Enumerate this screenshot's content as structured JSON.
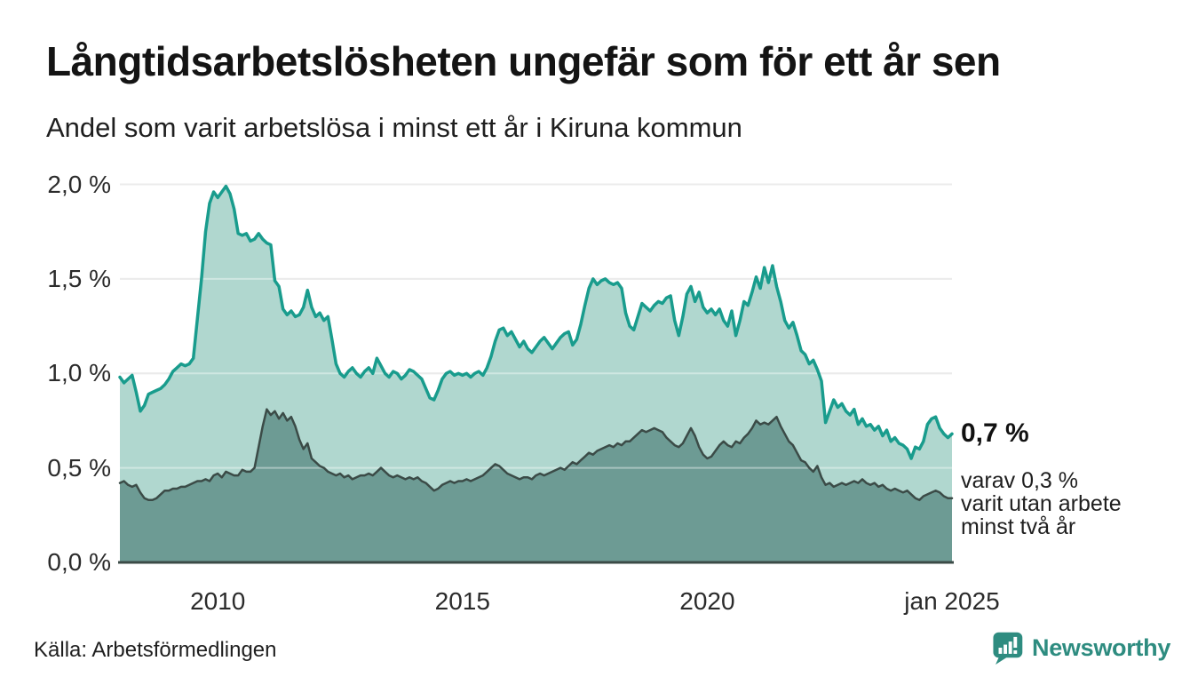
{
  "header": {
    "title": "Långtidsarbetslösheten ungefär som för ett år sen",
    "subtitle": "Andel som varit arbetslösa i minst ett år i Kiruna kommun"
  },
  "annotation": {
    "primary": "0,7 %",
    "secondary_lines": [
      "varav 0,3 %",
      "varit utan arbete",
      "minst två år"
    ]
  },
  "source": {
    "label": "Källa: Arbetsförmedlingen"
  },
  "branding": {
    "name": "Newsworthy",
    "color": "#2e8c80"
  },
  "colors": {
    "line_total": "#199c8d",
    "fill_total": "#b0d7cf",
    "line_two_years": "#3b4b47",
    "fill_two_years": "#6d9b94",
    "gridline": "#dedede",
    "axis": "#3b4b47",
    "text": "#1a1a1a"
  },
  "chart_data": {
    "type": "area",
    "title": "Långtidsarbetslösheten ungefär som för ett år sen",
    "subtitle": "Andel som varit arbetslösa i minst ett år i Kiruna kommun",
    "xlabel": "",
    "ylabel": "",
    "x_unit": "month",
    "x_start": 2008.0,
    "x_end": 2025.0,
    "ylim": [
      0,
      2.0
    ],
    "grid": true,
    "legend": "annotations at line end instead of legend box",
    "y_ticks": [
      0,
      0.5,
      1.0,
      1.5,
      2.0
    ],
    "y_tick_labels": [
      "0,0 %",
      "0,5 %",
      "1,0 %",
      "1,5 %",
      "2,0 %"
    ],
    "x_ticks": [
      2010,
      2015,
      2020,
      2025
    ],
    "x_tick_labels": [
      "2010",
      "2015",
      "2020",
      "jan 2025"
    ],
    "end_labels": {
      "total": "0,7 %",
      "two_years": "0,3 %"
    },
    "series": [
      {
        "name": "Andel som varit arbetslösa i minst ett år",
        "color": "#199c8d",
        "fill": "#b0d7cf",
        "line_width": 3.5,
        "values": [
          0.98,
          0.95,
          0.97,
          0.99,
          0.9,
          0.8,
          0.83,
          0.89,
          0.9,
          0.91,
          0.92,
          0.94,
          0.97,
          1.01,
          1.03,
          1.05,
          1.04,
          1.05,
          1.08,
          1.29,
          1.5,
          1.75,
          1.9,
          1.96,
          1.93,
          1.96,
          1.99,
          1.95,
          1.87,
          1.74,
          1.73,
          1.74,
          1.7,
          1.71,
          1.74,
          1.71,
          1.69,
          1.68,
          1.49,
          1.46,
          1.34,
          1.31,
          1.33,
          1.3,
          1.31,
          1.35,
          1.44,
          1.35,
          1.3,
          1.32,
          1.28,
          1.3,
          1.18,
          1.05,
          1.0,
          0.98,
          1.01,
          1.03,
          1.0,
          0.98,
          1.01,
          1.03,
          1.0,
          1.08,
          1.04,
          1.0,
          0.98,
          1.01,
          1.0,
          0.97,
          0.99,
          1.02,
          1.01,
          0.99,
          0.97,
          0.92,
          0.87,
          0.86,
          0.91,
          0.97,
          1.0,
          1.01,
          0.99,
          1.0,
          0.99,
          1.0,
          0.98,
          1.0,
          1.01,
          0.99,
          1.03,
          1.09,
          1.17,
          1.23,
          1.24,
          1.2,
          1.22,
          1.18,
          1.14,
          1.17,
          1.13,
          1.11,
          1.14,
          1.17,
          1.19,
          1.16,
          1.13,
          1.16,
          1.19,
          1.21,
          1.22,
          1.15,
          1.18,
          1.26,
          1.36,
          1.45,
          1.5,
          1.47,
          1.49,
          1.5,
          1.48,
          1.47,
          1.48,
          1.45,
          1.32,
          1.25,
          1.23,
          1.3,
          1.37,
          1.35,
          1.33,
          1.36,
          1.38,
          1.37,
          1.4,
          1.41,
          1.28,
          1.2,
          1.3,
          1.42,
          1.46,
          1.38,
          1.43,
          1.35,
          1.32,
          1.34,
          1.31,
          1.34,
          1.28,
          1.25,
          1.33,
          1.2,
          1.28,
          1.38,
          1.36,
          1.43,
          1.51,
          1.45,
          1.56,
          1.48,
          1.57,
          1.46,
          1.38,
          1.28,
          1.24,
          1.27,
          1.2,
          1.12,
          1.1,
          1.05,
          1.07,
          1.02,
          0.96,
          0.74,
          0.8,
          0.86,
          0.82,
          0.84,
          0.8,
          0.78,
          0.81,
          0.73,
          0.76,
          0.72,
          0.73,
          0.7,
          0.72,
          0.67,
          0.7,
          0.64,
          0.66,
          0.63,
          0.62,
          0.6,
          0.55,
          0.61,
          0.6,
          0.64,
          0.73,
          0.76,
          0.77,
          0.71,
          0.68,
          0.66,
          0.68
        ]
      },
      {
        "name": "varav utan arbete minst två år",
        "color": "#3b4b47",
        "fill": "#6d9b94",
        "line_width": 2.5,
        "values": [
          0.42,
          0.43,
          0.41,
          0.4,
          0.41,
          0.37,
          0.34,
          0.33,
          0.33,
          0.34,
          0.36,
          0.38,
          0.38,
          0.39,
          0.39,
          0.4,
          0.4,
          0.41,
          0.42,
          0.43,
          0.43,
          0.44,
          0.43,
          0.46,
          0.47,
          0.45,
          0.48,
          0.47,
          0.46,
          0.46,
          0.49,
          0.48,
          0.48,
          0.5,
          0.61,
          0.72,
          0.81,
          0.78,
          0.8,
          0.76,
          0.79,
          0.75,
          0.77,
          0.72,
          0.65,
          0.6,
          0.63,
          0.55,
          0.53,
          0.51,
          0.5,
          0.48,
          0.47,
          0.46,
          0.47,
          0.45,
          0.46,
          0.44,
          0.45,
          0.46,
          0.46,
          0.47,
          0.46,
          0.48,
          0.5,
          0.48,
          0.46,
          0.45,
          0.46,
          0.45,
          0.44,
          0.45,
          0.44,
          0.45,
          0.43,
          0.42,
          0.4,
          0.38,
          0.39,
          0.41,
          0.42,
          0.43,
          0.42,
          0.43,
          0.43,
          0.44,
          0.43,
          0.44,
          0.45,
          0.46,
          0.48,
          0.5,
          0.52,
          0.51,
          0.49,
          0.47,
          0.46,
          0.45,
          0.44,
          0.45,
          0.45,
          0.44,
          0.46,
          0.47,
          0.46,
          0.47,
          0.48,
          0.49,
          0.5,
          0.49,
          0.51,
          0.53,
          0.52,
          0.54,
          0.56,
          0.58,
          0.57,
          0.59,
          0.6,
          0.61,
          0.62,
          0.61,
          0.63,
          0.62,
          0.64,
          0.64,
          0.66,
          0.68,
          0.7,
          0.69,
          0.7,
          0.71,
          0.7,
          0.69,
          0.66,
          0.64,
          0.62,
          0.61,
          0.63,
          0.67,
          0.71,
          0.67,
          0.61,
          0.57,
          0.55,
          0.56,
          0.59,
          0.62,
          0.64,
          0.62,
          0.61,
          0.64,
          0.63,
          0.66,
          0.68,
          0.71,
          0.75,
          0.73,
          0.74,
          0.73,
          0.75,
          0.77,
          0.72,
          0.68,
          0.64,
          0.62,
          0.58,
          0.54,
          0.53,
          0.5,
          0.48,
          0.51,
          0.45,
          0.41,
          0.42,
          0.4,
          0.41,
          0.42,
          0.41,
          0.42,
          0.43,
          0.42,
          0.44,
          0.42,
          0.41,
          0.42,
          0.4,
          0.41,
          0.39,
          0.38,
          0.39,
          0.38,
          0.37,
          0.38,
          0.36,
          0.34,
          0.33,
          0.35,
          0.36,
          0.37,
          0.38,
          0.37,
          0.35,
          0.34,
          0.34
        ]
      }
    ]
  }
}
